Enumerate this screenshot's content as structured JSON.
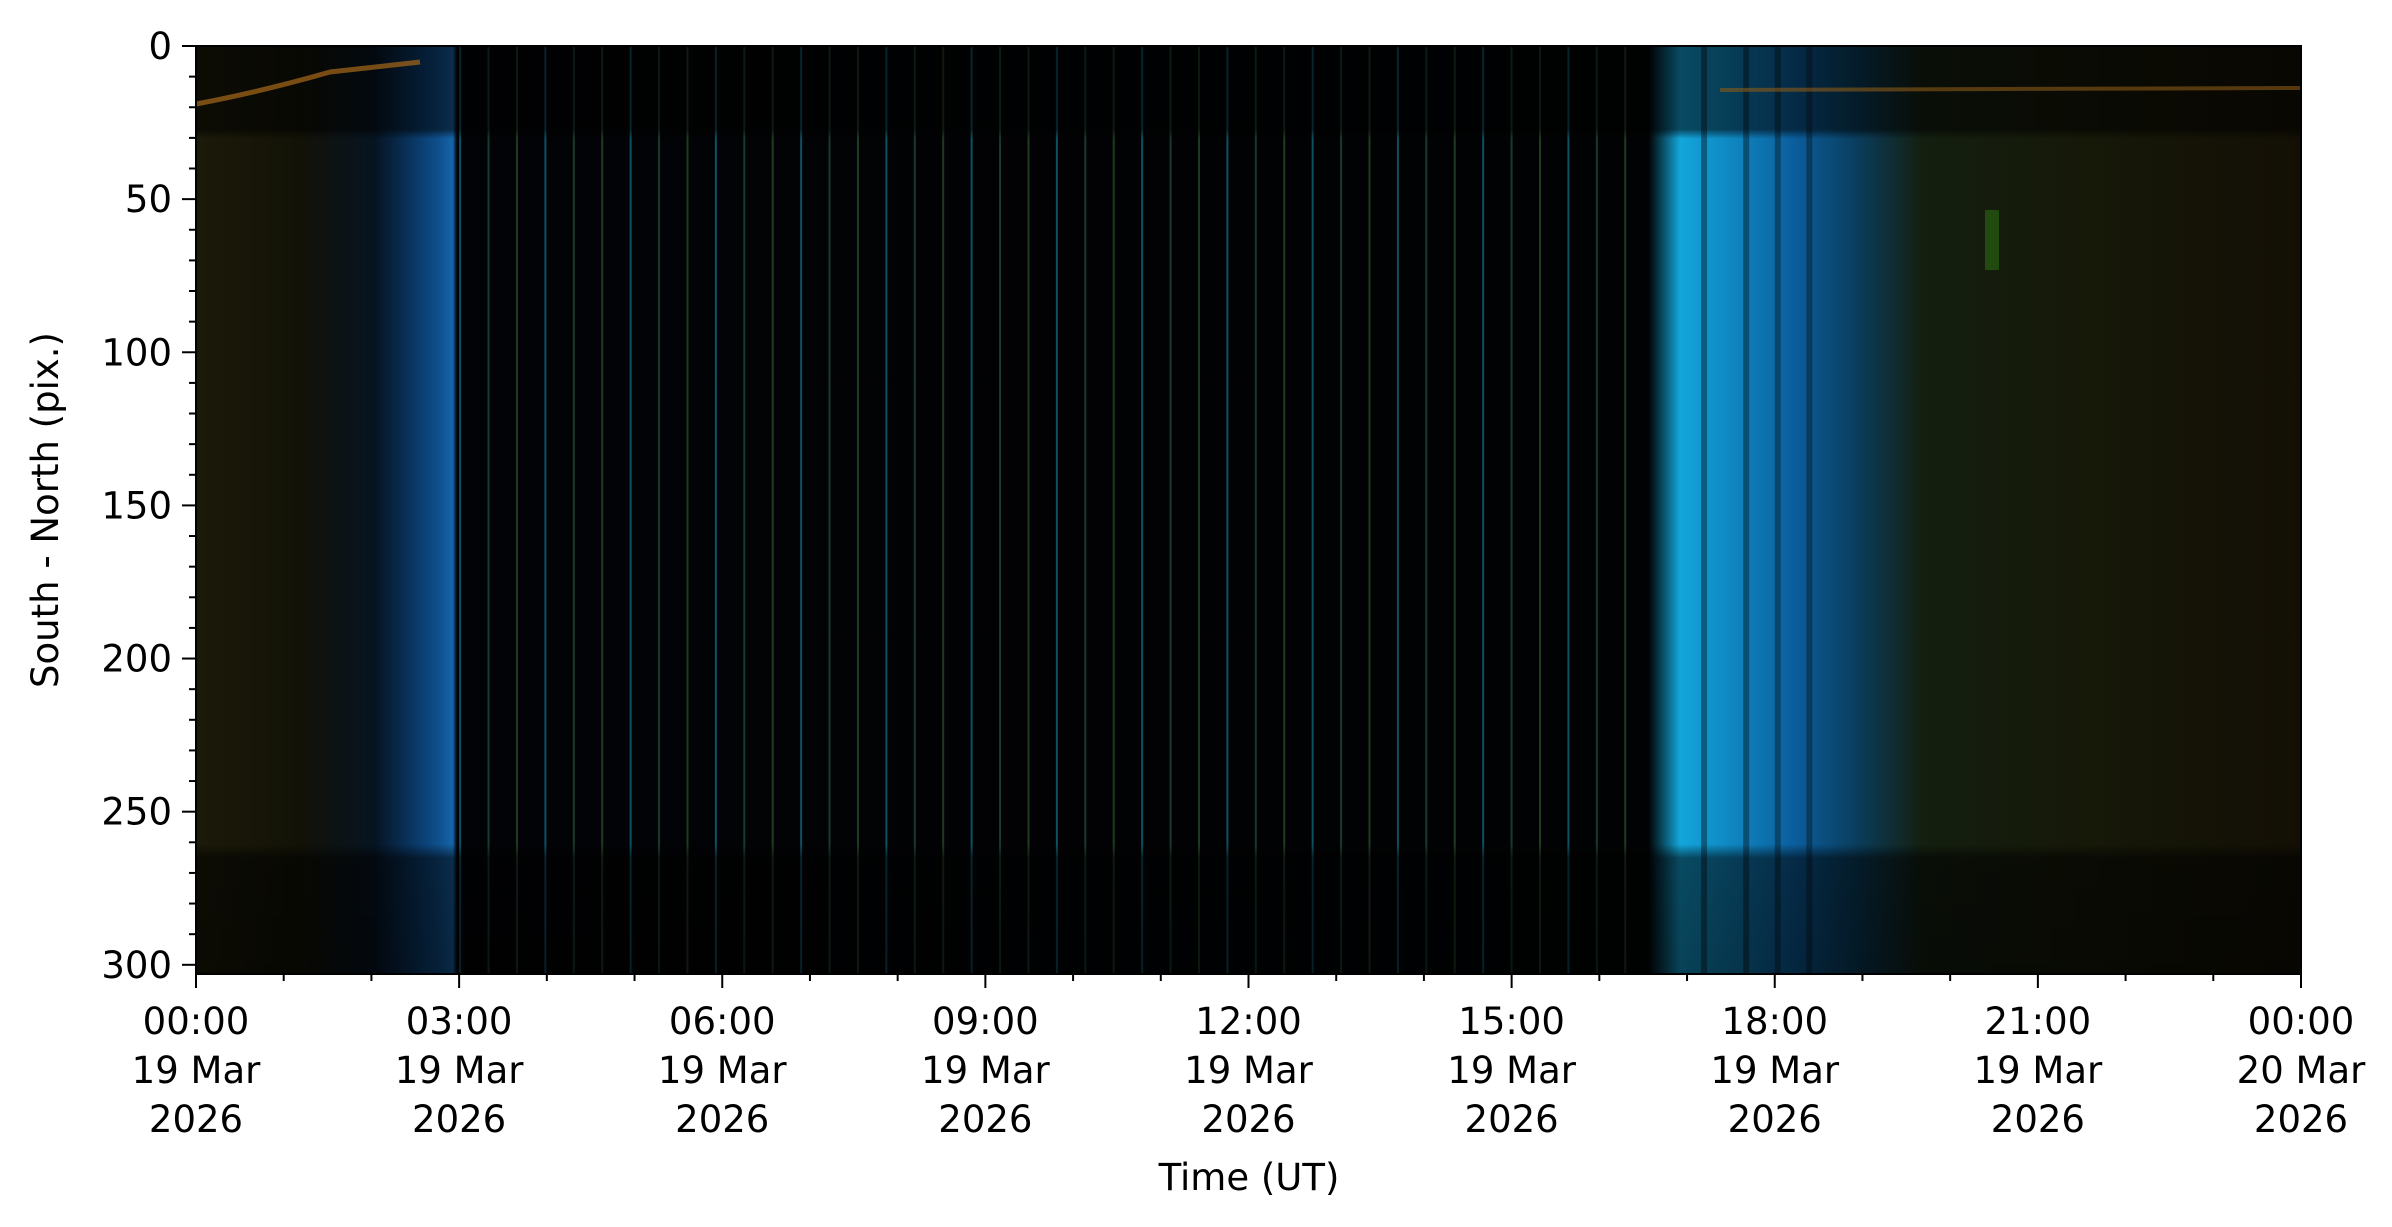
{
  "chart_data": {
    "type": "image",
    "x_label": "Time (UT)",
    "y_label": "South - North (pix.)",
    "xlim": [
      "2026-03-19T00:00",
      "2026-03-20T00:00"
    ],
    "xticks": [
      {
        "value": "2026-03-19T00:00",
        "label": "00:00\n19 Mar\n2026"
      },
      {
        "value": "2026-03-19T03:00",
        "label": "03:00\n19 Mar\n2026"
      },
      {
        "value": "2026-03-19T06:00",
        "label": "06:00\n19 Mar\n2026"
      },
      {
        "value": "2026-03-19T09:00",
        "label": "09:00\n19 Mar\n2026"
      },
      {
        "value": "2026-03-19T12:00",
        "label": "12:00\n19 Mar\n2026"
      },
      {
        "value": "2026-03-19T15:00",
        "label": "15:00\n19 Mar\n2026"
      },
      {
        "value": "2026-03-19T18:00",
        "label": "18:00\n19 Mar\n2026"
      },
      {
        "value": "2026-03-19T21:00",
        "label": "21:00\n19 Mar\n2026"
      },
      {
        "value": "2026-03-20T00:00",
        "label": "00:00\n20 Mar\n2026"
      }
    ],
    "ylim": [
      0,
      303
    ],
    "y_inverted": true,
    "yticks": [
      0,
      50,
      100,
      150,
      200,
      250,
      300
    ]
  }
}
